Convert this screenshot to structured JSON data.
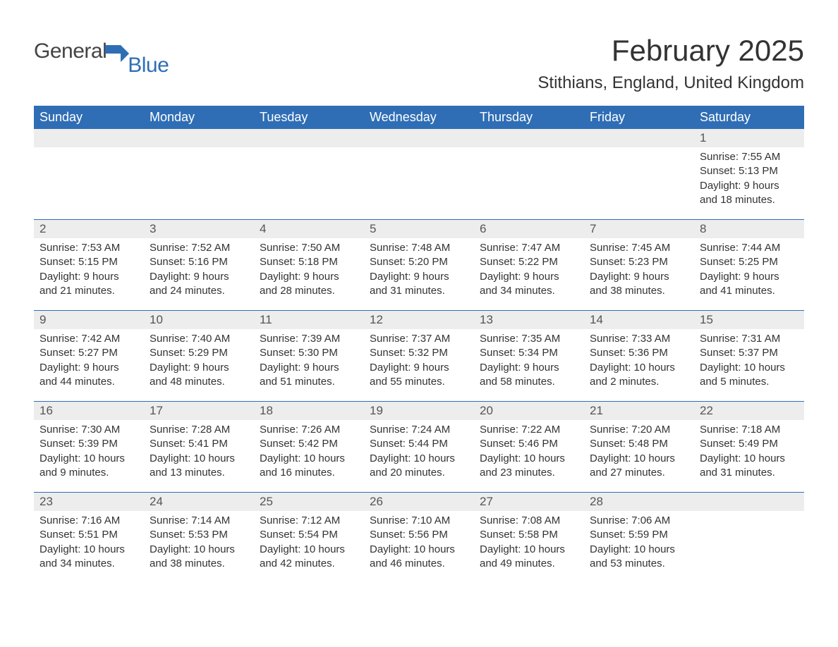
{
  "logo": {
    "part1": "General",
    "part2": "Blue"
  },
  "title": "February 2025",
  "location": "Stithians, England, United Kingdom",
  "colors": {
    "header_bg": "#2f6eb5",
    "header_text": "#ffffff",
    "daynum_bg": "#ededed",
    "text": "#333333",
    "logo_gray": "#444444",
    "logo_blue": "#2f6eb5",
    "page_bg": "#ffffff"
  },
  "weekdays": [
    "Sunday",
    "Monday",
    "Tuesday",
    "Wednesday",
    "Thursday",
    "Friday",
    "Saturday"
  ],
  "weeks": [
    [
      null,
      null,
      null,
      null,
      null,
      null,
      {
        "n": "1",
        "sunrise": "7:55 AM",
        "sunset": "5:13 PM",
        "daylight": "9 hours and 18 minutes."
      }
    ],
    [
      {
        "n": "2",
        "sunrise": "7:53 AM",
        "sunset": "5:15 PM",
        "daylight": "9 hours and 21 minutes."
      },
      {
        "n": "3",
        "sunrise": "7:52 AM",
        "sunset": "5:16 PM",
        "daylight": "9 hours and 24 minutes."
      },
      {
        "n": "4",
        "sunrise": "7:50 AM",
        "sunset": "5:18 PM",
        "daylight": "9 hours and 28 minutes."
      },
      {
        "n": "5",
        "sunrise": "7:48 AM",
        "sunset": "5:20 PM",
        "daylight": "9 hours and 31 minutes."
      },
      {
        "n": "6",
        "sunrise": "7:47 AM",
        "sunset": "5:22 PM",
        "daylight": "9 hours and 34 minutes."
      },
      {
        "n": "7",
        "sunrise": "7:45 AM",
        "sunset": "5:23 PM",
        "daylight": "9 hours and 38 minutes."
      },
      {
        "n": "8",
        "sunrise": "7:44 AM",
        "sunset": "5:25 PM",
        "daylight": "9 hours and 41 minutes."
      }
    ],
    [
      {
        "n": "9",
        "sunrise": "7:42 AM",
        "sunset": "5:27 PM",
        "daylight": "9 hours and 44 minutes."
      },
      {
        "n": "10",
        "sunrise": "7:40 AM",
        "sunset": "5:29 PM",
        "daylight": "9 hours and 48 minutes."
      },
      {
        "n": "11",
        "sunrise": "7:39 AM",
        "sunset": "5:30 PM",
        "daylight": "9 hours and 51 minutes."
      },
      {
        "n": "12",
        "sunrise": "7:37 AM",
        "sunset": "5:32 PM",
        "daylight": "9 hours and 55 minutes."
      },
      {
        "n": "13",
        "sunrise": "7:35 AM",
        "sunset": "5:34 PM",
        "daylight": "9 hours and 58 minutes."
      },
      {
        "n": "14",
        "sunrise": "7:33 AM",
        "sunset": "5:36 PM",
        "daylight": "10 hours and 2 minutes."
      },
      {
        "n": "15",
        "sunrise": "7:31 AM",
        "sunset": "5:37 PM",
        "daylight": "10 hours and 5 minutes."
      }
    ],
    [
      {
        "n": "16",
        "sunrise": "7:30 AM",
        "sunset": "5:39 PM",
        "daylight": "10 hours and 9 minutes."
      },
      {
        "n": "17",
        "sunrise": "7:28 AM",
        "sunset": "5:41 PM",
        "daylight": "10 hours and 13 minutes."
      },
      {
        "n": "18",
        "sunrise": "7:26 AM",
        "sunset": "5:42 PM",
        "daylight": "10 hours and 16 minutes."
      },
      {
        "n": "19",
        "sunrise": "7:24 AM",
        "sunset": "5:44 PM",
        "daylight": "10 hours and 20 minutes."
      },
      {
        "n": "20",
        "sunrise": "7:22 AM",
        "sunset": "5:46 PM",
        "daylight": "10 hours and 23 minutes."
      },
      {
        "n": "21",
        "sunrise": "7:20 AM",
        "sunset": "5:48 PM",
        "daylight": "10 hours and 27 minutes."
      },
      {
        "n": "22",
        "sunrise": "7:18 AM",
        "sunset": "5:49 PM",
        "daylight": "10 hours and 31 minutes."
      }
    ],
    [
      {
        "n": "23",
        "sunrise": "7:16 AM",
        "sunset": "5:51 PM",
        "daylight": "10 hours and 34 minutes."
      },
      {
        "n": "24",
        "sunrise": "7:14 AM",
        "sunset": "5:53 PM",
        "daylight": "10 hours and 38 minutes."
      },
      {
        "n": "25",
        "sunrise": "7:12 AM",
        "sunset": "5:54 PM",
        "daylight": "10 hours and 42 minutes."
      },
      {
        "n": "26",
        "sunrise": "7:10 AM",
        "sunset": "5:56 PM",
        "daylight": "10 hours and 46 minutes."
      },
      {
        "n": "27",
        "sunrise": "7:08 AM",
        "sunset": "5:58 PM",
        "daylight": "10 hours and 49 minutes."
      },
      {
        "n": "28",
        "sunrise": "7:06 AM",
        "sunset": "5:59 PM",
        "daylight": "10 hours and 53 minutes."
      },
      null
    ]
  ],
  "labels": {
    "sunrise": "Sunrise: ",
    "sunset": "Sunset: ",
    "daylight": "Daylight: "
  }
}
